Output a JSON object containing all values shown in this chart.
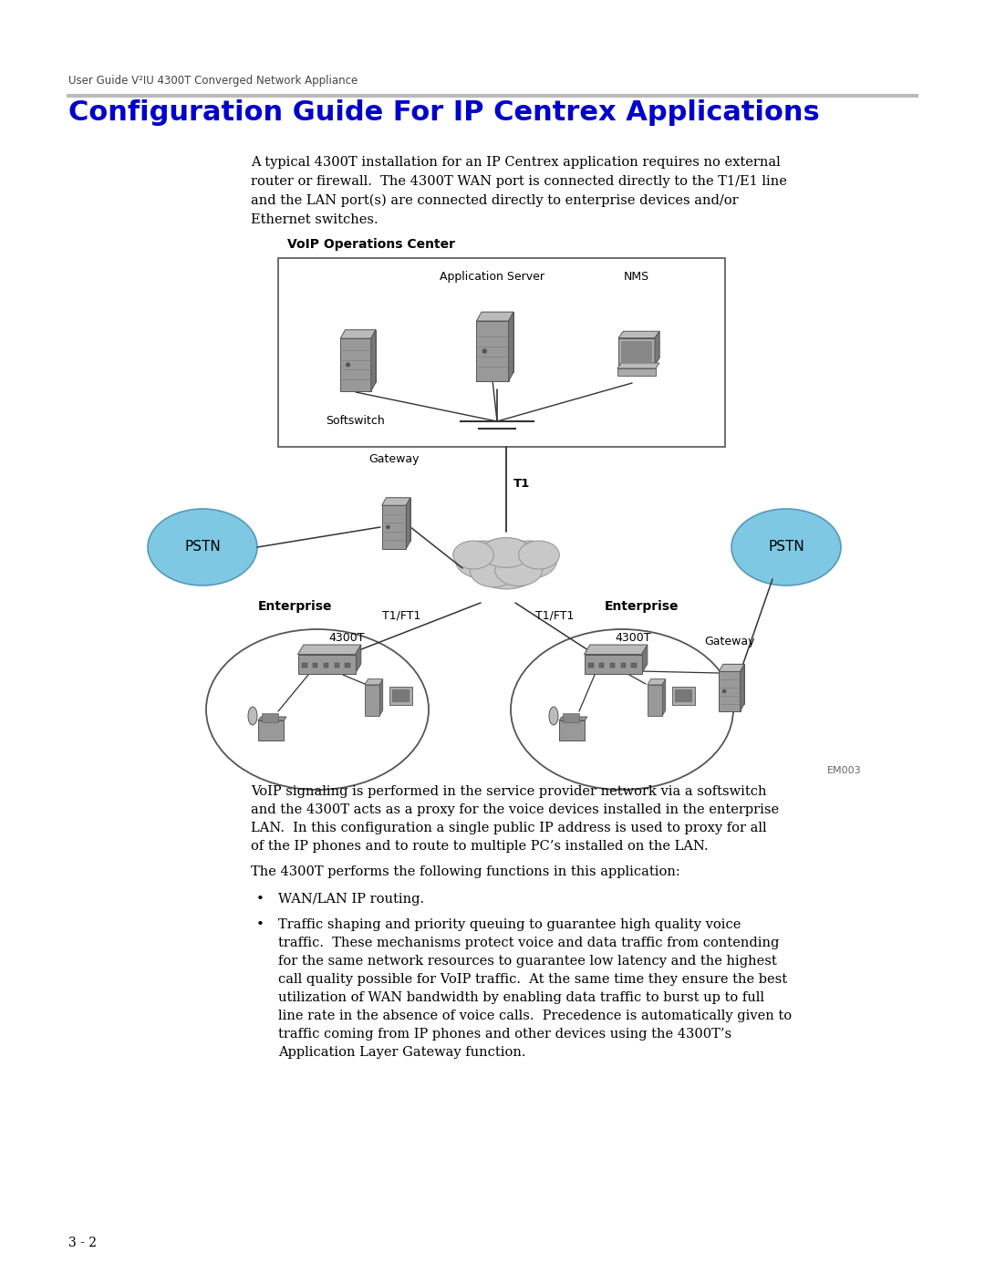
{
  "header_text": "User Guide V²IU 4300T Converged Network Appliance",
  "title": "Configuration Guide For IP Centrex Applications",
  "title_color": "#0000CC",
  "body_color": "#000000",
  "bg_color": "#FFFFFF",
  "intro_text": [
    "A typical 4300T installation for an IP Centrex application requires no external",
    "router or firewall.  The 4300T WAN port is connected directly to the T1/E1 line",
    "and the LAN port(s) are connected directly to enterprise devices and/or",
    "Ethernet switches."
  ],
  "voip_label": "VoIP Operations Center",
  "softswitch_label": "Softswitch",
  "app_server_label": "Application Server",
  "nms_label": "NMS",
  "gateway_label": "Gateway",
  "t1_label": "T1",
  "pstn_label": "PSTN",
  "enterprise_label": "Enterprise",
  "t1ft1_label": "T1/FT1",
  "label_4300t": "4300T",
  "gateway2_label": "Gateway",
  "em_label": "EM003",
  "desc_text": [
    "VoIP signaling is performed in the service provider network via a softswitch",
    "and the 4300T acts as a proxy for the voice devices installed in the enterprise",
    "LAN.  In this configuration a single public IP address is used to proxy for all",
    "of the IP phones and to route to multiple PC’s installed on the LAN."
  ],
  "functions_intro": "The 4300T performs the following functions in this application:",
  "bullet1": "WAN/LAN IP routing.",
  "bullet2_lines": [
    "Traffic shaping and priority queuing to guarantee high quality voice",
    "traffic.  These mechanisms protect voice and data traffic from contending",
    "for the same network resources to guarantee low latency and the highest",
    "call quality possible for VoIP traffic.  At the same time they ensure the best",
    "utilization of WAN bandwidth by enabling data traffic to burst up to full",
    "line rate in the absence of voice calls.  Precedence is automatically given to",
    "traffic coming from IP phones and other devices using the 4300T’s",
    "Application Layer Gateway function."
  ],
  "page_num": "3 - 2",
  "header_line_color": "#BBBBBB",
  "pstn_fill": "#7EC8E3",
  "pstn_edge": "#5599BB",
  "cloud_fill": "#C8C8C8",
  "cloud_edge": "#999999",
  "box_edge": "#444444",
  "device_fill": "#999999",
  "device_edge": "#555555",
  "device_light": "#BBBBBB",
  "device_dark": "#777777",
  "ent_edge": "#555555",
  "line_color": "#333333"
}
